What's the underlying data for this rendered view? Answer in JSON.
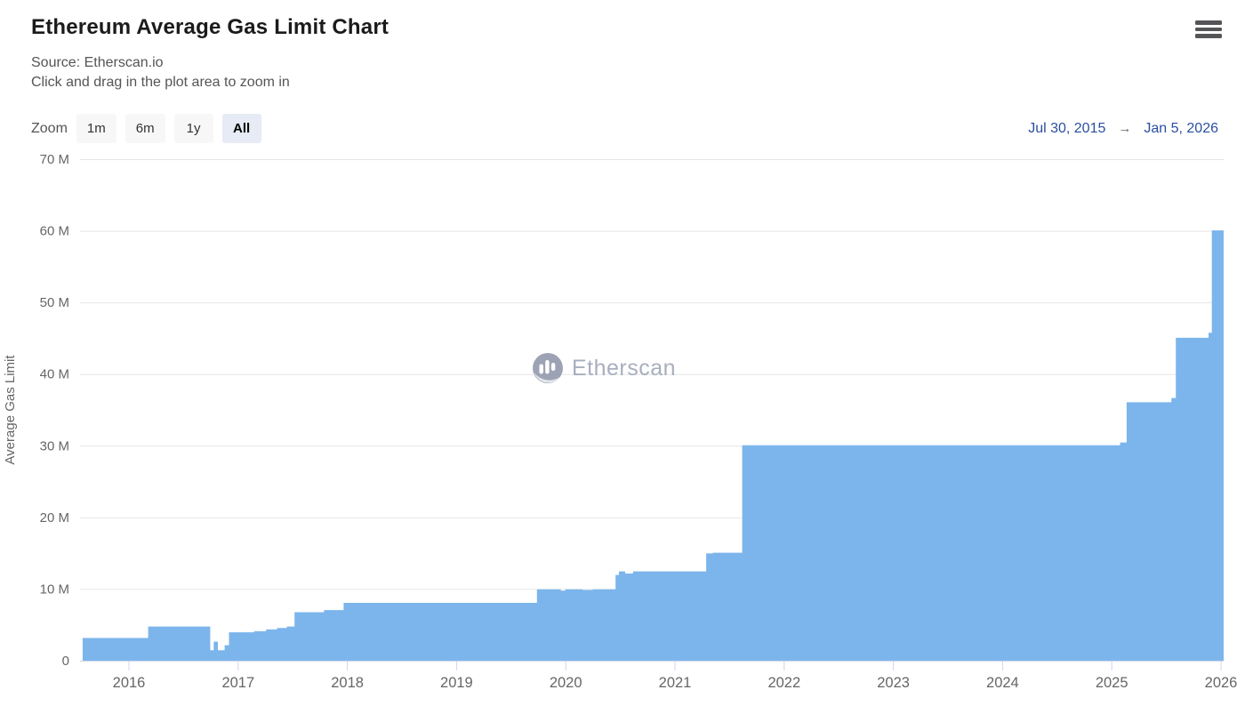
{
  "header": {
    "title": "Ethereum Average Gas Limit Chart",
    "source_line": "Source: Etherscan.io",
    "hint_line": "Click and drag in the plot area to zoom in"
  },
  "range_selector": {
    "zoom_label": "Zoom",
    "buttons": [
      {
        "label": "1m",
        "selected": false
      },
      {
        "label": "6m",
        "selected": false
      },
      {
        "label": "1y",
        "selected": false
      },
      {
        "label": "All",
        "selected": true
      }
    ],
    "date_from": "Jul 30, 2015",
    "arrow": "→",
    "date_to": "Jan 5, 2026"
  },
  "watermark": {
    "text": "Etherscan"
  },
  "colors": {
    "series_fill": "#7cb5ec",
    "grid_line": "#e6e6e6",
    "axis_line": "#ccd6eb",
    "tick_label": "#666666",
    "axis_title": "#666666",
    "date_range_text": "#2a4f9e",
    "selected_button_bg": "#e6ebf5",
    "button_bg": "#f7f7f7"
  },
  "chart_data": {
    "type": "area",
    "step": "after",
    "title": "Ethereum Average Gas Limit Chart",
    "xlabel": "",
    "ylabel": "Average Gas Limit",
    "units": "points are [decimal_year, gas_limit_in_millions]",
    "x_start": 2015.58,
    "x_end": 2026.02,
    "ylim": [
      0,
      70
    ],
    "y_ticks": [
      0,
      10,
      20,
      30,
      40,
      50,
      60,
      70
    ],
    "y_tick_labels": [
      "0",
      "10 M",
      "20 M",
      "30 M",
      "40 M",
      "50 M",
      "60 M",
      "70 M"
    ],
    "x_ticks": [
      2016,
      2017,
      2018,
      2019,
      2020,
      2021,
      2022,
      2023,
      2024,
      2025,
      2026
    ],
    "x_tick_labels": [
      "2016",
      "2017",
      "2018",
      "2019",
      "2020",
      "2021",
      "2022",
      "2023",
      "2024",
      "2025",
      "2026"
    ],
    "grid": true,
    "legend": false,
    "points": [
      [
        2015.58,
        3.1
      ],
      [
        2016.18,
        4.7
      ],
      [
        2016.74,
        1.4
      ],
      [
        2016.78,
        2.6
      ],
      [
        2016.81,
        1.4
      ],
      [
        2016.88,
        2.1
      ],
      [
        2016.92,
        3.9
      ],
      [
        2017.15,
        4.05
      ],
      [
        2017.26,
        4.3
      ],
      [
        2017.36,
        4.5
      ],
      [
        2017.45,
        4.7
      ],
      [
        2017.52,
        6.7
      ],
      [
        2017.79,
        7.0
      ],
      [
        2017.97,
        8.0
      ],
      [
        2019.74,
        9.9
      ],
      [
        2019.95,
        9.7
      ],
      [
        2020.0,
        9.9
      ],
      [
        2020.15,
        9.8
      ],
      [
        2020.25,
        9.9
      ],
      [
        2020.46,
        11.9
      ],
      [
        2020.49,
        12.4
      ],
      [
        2020.54,
        12.1
      ],
      [
        2020.62,
        12.4
      ],
      [
        2021.29,
        14.9
      ],
      [
        2021.35,
        15.0
      ],
      [
        2021.62,
        30.0
      ],
      [
        2025.08,
        30.4
      ],
      [
        2025.14,
        36.0
      ],
      [
        2025.55,
        36.6
      ],
      [
        2025.59,
        45.0
      ],
      [
        2025.89,
        45.7
      ],
      [
        2025.92,
        60.0
      ]
    ]
  }
}
